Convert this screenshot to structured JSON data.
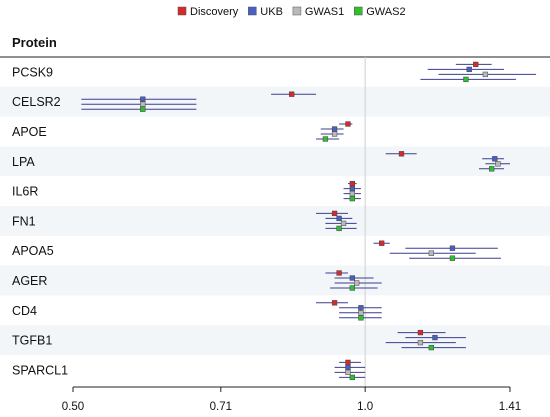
{
  "chart_data": {
    "type": "forest",
    "header": "Protein",
    "legend_position": "top",
    "x_scale": "log",
    "xlim": [
      0.5,
      1.41
    ],
    "x_ticks": [
      "0.50",
      "0.71",
      "1.0",
      "1.41"
    ],
    "x_tick_values": [
      0.5,
      0.71,
      1.0,
      1.41
    ],
    "reference_value": 1.0,
    "series": [
      {
        "name": "Discovery",
        "color": "#d42a2a"
      },
      {
        "name": "UKB",
        "color": "#4a5fc1"
      },
      {
        "name": "GWAS1",
        "color": "#b9b9b9"
      },
      {
        "name": "GWAS2",
        "color": "#2fbf2f"
      }
    ],
    "rows": [
      {
        "label": "PCSK9",
        "estimates": [
          {
            "est": 1.3,
            "lo": 1.24,
            "hi": 1.35
          },
          {
            "est": 1.28,
            "lo": 1.16,
            "hi": 1.39
          },
          {
            "est": 1.33,
            "lo": 1.19,
            "hi": 1.5
          },
          {
            "est": 1.27,
            "lo": 1.14,
            "hi": 1.43
          }
        ]
      },
      {
        "label": "CELSR2",
        "estimates": [
          {
            "est": 0.84,
            "lo": 0.8,
            "hi": 0.89
          },
          {
            "est": 0.59,
            "lo": 0.51,
            "hi": 0.67
          },
          {
            "est": 0.59,
            "lo": 0.51,
            "hi": 0.67
          },
          {
            "est": 0.59,
            "lo": 0.51,
            "hi": 0.67
          }
        ]
      },
      {
        "label": "APOE",
        "estimates": [
          {
            "est": 0.96,
            "lo": 0.94,
            "hi": 0.97
          },
          {
            "est": 0.93,
            "lo": 0.9,
            "hi": 0.95
          },
          {
            "est": 0.93,
            "lo": 0.9,
            "hi": 0.95
          },
          {
            "est": 0.91,
            "lo": 0.89,
            "hi": 0.94
          }
        ]
      },
      {
        "label": "LPA",
        "estimates": [
          {
            "est": 1.09,
            "lo": 1.05,
            "hi": 1.13
          },
          {
            "est": 1.36,
            "lo": 1.32,
            "hi": 1.39
          },
          {
            "est": 1.37,
            "lo": 1.33,
            "hi": 1.41
          },
          {
            "est": 1.35,
            "lo": 1.31,
            "hi": 1.39
          }
        ]
      },
      {
        "label": "IL6R",
        "estimates": [
          {
            "est": 0.97,
            "lo": 0.96,
            "hi": 0.98
          },
          {
            "est": 0.97,
            "lo": 0.95,
            "hi": 0.99
          },
          {
            "est": 0.97,
            "lo": 0.95,
            "hi": 0.99
          },
          {
            "est": 0.97,
            "lo": 0.95,
            "hi": 0.99
          }
        ]
      },
      {
        "label": "FN1",
        "estimates": [
          {
            "est": 0.93,
            "lo": 0.89,
            "hi": 0.96
          },
          {
            "est": 0.94,
            "lo": 0.91,
            "hi": 0.97
          },
          {
            "est": 0.95,
            "lo": 0.91,
            "hi": 0.98
          },
          {
            "est": 0.94,
            "lo": 0.91,
            "hi": 0.98
          }
        ]
      },
      {
        "label": "APOA5",
        "estimates": [
          {
            "est": 1.04,
            "lo": 1.02,
            "hi": 1.06
          },
          {
            "est": 1.23,
            "lo": 1.1,
            "hi": 1.37
          },
          {
            "est": 1.17,
            "lo": 1.06,
            "hi": 1.3
          },
          {
            "est": 1.23,
            "lo": 1.11,
            "hi": 1.38
          }
        ]
      },
      {
        "label": "AGER",
        "estimates": [
          {
            "est": 0.94,
            "lo": 0.91,
            "hi": 0.96
          },
          {
            "est": 0.97,
            "lo": 0.93,
            "hi": 1.02
          },
          {
            "est": 0.98,
            "lo": 0.93,
            "hi": 1.04
          },
          {
            "est": 0.97,
            "lo": 0.92,
            "hi": 1.03
          }
        ]
      },
      {
        "label": "CD4",
        "estimates": [
          {
            "est": 0.93,
            "lo": 0.89,
            "hi": 0.96
          },
          {
            "est": 0.99,
            "lo": 0.94,
            "hi": 1.04
          },
          {
            "est": 0.99,
            "lo": 0.94,
            "hi": 1.04
          },
          {
            "est": 0.99,
            "lo": 0.94,
            "hi": 1.04
          }
        ]
      },
      {
        "label": "TGFB1",
        "estimates": [
          {
            "est": 1.14,
            "lo": 1.08,
            "hi": 1.21
          },
          {
            "est": 1.18,
            "lo": 1.1,
            "hi": 1.27
          },
          {
            "est": 1.14,
            "lo": 1.05,
            "hi": 1.24
          },
          {
            "est": 1.17,
            "lo": 1.09,
            "hi": 1.27
          }
        ]
      },
      {
        "label": "SPARCL1",
        "estimates": [
          {
            "est": 0.96,
            "lo": 0.94,
            "hi": 0.99
          },
          {
            "est": 0.96,
            "lo": 0.93,
            "hi": 1.0
          },
          {
            "est": 0.96,
            "lo": 0.93,
            "hi": 1.0
          },
          {
            "est": 0.97,
            "lo": 0.94,
            "hi": 1.0
          }
        ]
      }
    ]
  }
}
